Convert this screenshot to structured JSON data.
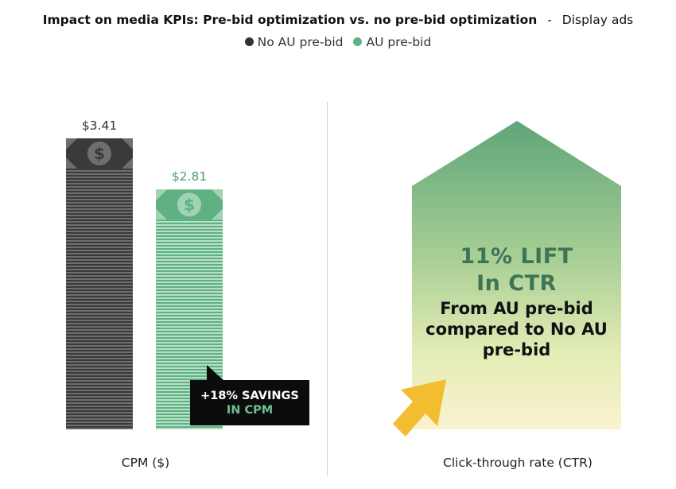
{
  "header": {
    "title": "Impact on media KPIs: Pre-bid optimization vs. no pre-bid optimization",
    "separator": "-",
    "subtitle": "Display ads"
  },
  "legend": [
    {
      "label": "No AU pre-bid",
      "color": "#333333"
    },
    {
      "label": "AU pre-bid",
      "color": "#5fb184"
    }
  ],
  "chart_data": {
    "type": "bar",
    "categories": [
      "No AU pre-bid",
      "AU pre-bid"
    ],
    "values": [
      3.41,
      2.81
    ],
    "value_labels": [
      "$3.41",
      "$2.81"
    ],
    "xlabel": "CPM ($)",
    "ylim": [
      0,
      3.41
    ],
    "colors": [
      "#333333",
      "#5fb184"
    ],
    "icon": "dollar-bill-icon",
    "annotation": {
      "line1": "+18% SAVINGS",
      "line2": "IN CPM"
    }
  },
  "ctr_panel": {
    "lift_line1": "11% LIFT",
    "lift_line2": "In CTR",
    "description": [
      "From AU pre-bid",
      "compared to No AU",
      "pre-bid"
    ],
    "xlabel": "Click-through rate (CTR)",
    "icon": "cursor-arrow-icon"
  }
}
